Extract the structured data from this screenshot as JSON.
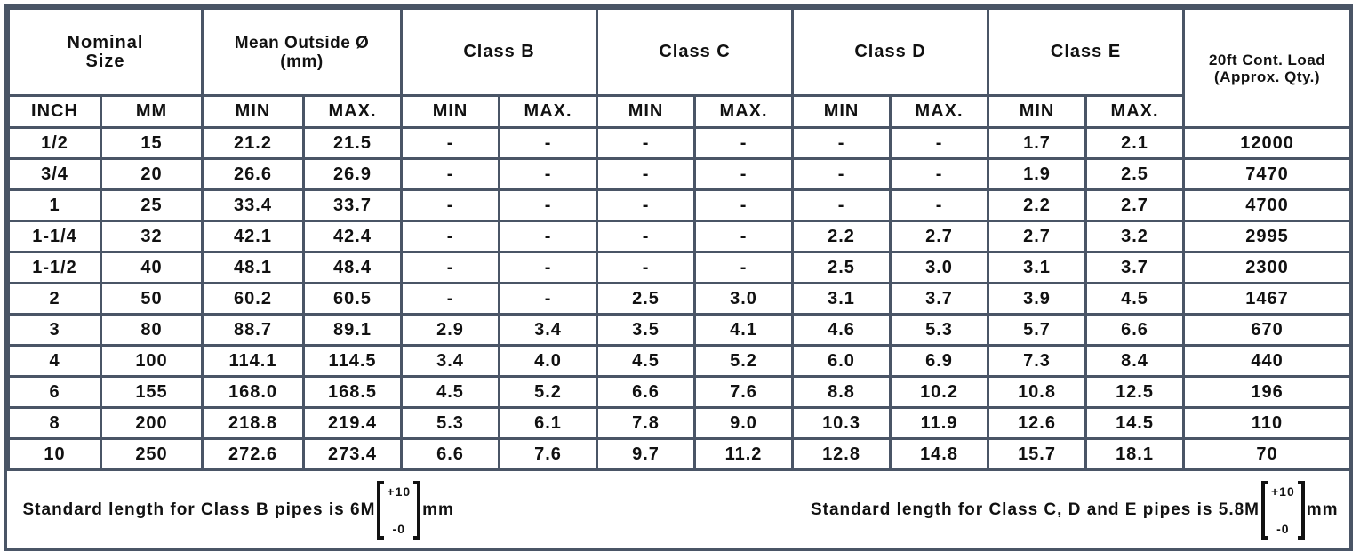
{
  "headers": {
    "nominal_size": "Nominal Size",
    "mean_outside": "Mean Outside Ø (mm)",
    "class_b": "Class B",
    "class_c": "Class C",
    "class_d": "Class D",
    "class_e": "Class E",
    "load": "20ft Cont. Load (Approx. Qty.)",
    "inch": "INCH",
    "mm": "MM",
    "min": "MIN",
    "max": "MAX."
  },
  "rows": [
    [
      "1/2",
      "15",
      "21.2",
      "21.5",
      "-",
      "-",
      "-",
      "-",
      "-",
      "-",
      "1.7",
      "2.1",
      "12000"
    ],
    [
      "3/4",
      "20",
      "26.6",
      "26.9",
      "-",
      "-",
      "-",
      "-",
      "-",
      "-",
      "1.9",
      "2.5",
      "7470"
    ],
    [
      "1",
      "25",
      "33.4",
      "33.7",
      "-",
      "-",
      "-",
      "-",
      "-",
      "-",
      "2.2",
      "2.7",
      "4700"
    ],
    [
      "1-1/4",
      "32",
      "42.1",
      "42.4",
      "-",
      "-",
      "-",
      "-",
      "2.2",
      "2.7",
      "2.7",
      "3.2",
      "2995"
    ],
    [
      "1-1/2",
      "40",
      "48.1",
      "48.4",
      "-",
      "-",
      "-",
      "-",
      "2.5",
      "3.0",
      "3.1",
      "3.7",
      "2300"
    ],
    [
      "2",
      "50",
      "60.2",
      "60.5",
      "-",
      "-",
      "2.5",
      "3.0",
      "3.1",
      "3.7",
      "3.9",
      "4.5",
      "1467"
    ],
    [
      "3",
      "80",
      "88.7",
      "89.1",
      "2.9",
      "3.4",
      "3.5",
      "4.1",
      "4.6",
      "5.3",
      "5.7",
      "6.6",
      "670"
    ],
    [
      "4",
      "100",
      "114.1",
      "114.5",
      "3.4",
      "4.0",
      "4.5",
      "5.2",
      "6.0",
      "6.9",
      "7.3",
      "8.4",
      "440"
    ],
    [
      "6",
      "155",
      "168.0",
      "168.5",
      "4.5",
      "5.2",
      "6.6",
      "7.6",
      "8.8",
      "10.2",
      "10.8",
      "12.5",
      "196"
    ],
    [
      "8",
      "200",
      "218.8",
      "219.4",
      "5.3",
      "6.1",
      "7.8",
      "9.0",
      "10.3",
      "11.9",
      "12.6",
      "14.5",
      "110"
    ],
    [
      "10",
      "250",
      "272.6",
      "273.4",
      "6.6",
      "7.6",
      "9.7",
      "11.2",
      "12.8",
      "14.8",
      "15.7",
      "18.1",
      "70"
    ]
  ],
  "footer": {
    "note_b": "Standard length for Class B pipes is 6M",
    "note_cde": "Standard length for Class C, D and E pipes is 5.8M",
    "tol_plus": "+10",
    "tol_minus": "-0",
    "unit": "mm"
  },
  "colors": {
    "grid": "#4a5566",
    "text": "#111111"
  }
}
